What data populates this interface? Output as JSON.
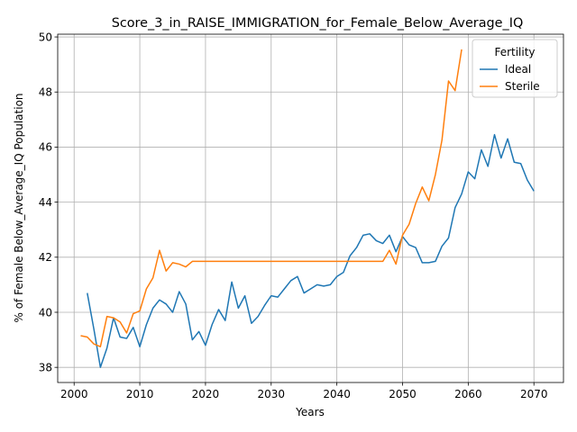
{
  "chart_data": {
    "type": "line",
    "title": "Score_3_in_RAISE_IMMIGRATION_for_Female_Below_Average_IQ",
    "xlabel": "Years",
    "ylabel": "% of Female Below_Average_IQ Population",
    "xlim": [
      1997.5,
      2074.5
    ],
    "ylim": [
      37.45,
      50.1
    ],
    "x_ticks": [
      2000,
      2010,
      2020,
      2030,
      2040,
      2050,
      2060,
      2070
    ],
    "y_ticks": [
      38,
      40,
      42,
      44,
      46,
      48,
      50
    ],
    "grid": true,
    "legend": {
      "title": "Fertility",
      "position": "top-right"
    },
    "series": [
      {
        "name": "Ideal",
        "color": "#1f77b4",
        "x": [
          2002,
          2003,
          2004,
          2005,
          2006,
          2007,
          2008,
          2009,
          2010,
          2011,
          2012,
          2013,
          2014,
          2015,
          2016,
          2017,
          2018,
          2019,
          2020,
          2021,
          2022,
          2023,
          2024,
          2025,
          2026,
          2027,
          2028,
          2029,
          2030,
          2031,
          2032,
          2033,
          2034,
          2035,
          2036,
          2037,
          2038,
          2039,
          2040,
          2041,
          2042,
          2043,
          2044,
          2045,
          2046,
          2047,
          2048,
          2049,
          2050,
          2051,
          2052,
          2053,
          2054,
          2055,
          2056,
          2057,
          2058,
          2059,
          2060,
          2061,
          2062,
          2063,
          2064,
          2065,
          2066,
          2067,
          2068,
          2069,
          2070
        ],
        "y": [
          40.7,
          39.4,
          38.0,
          38.7,
          39.8,
          39.1,
          39.05,
          39.45,
          38.75,
          39.55,
          40.15,
          40.45,
          40.3,
          40.0,
          40.75,
          40.3,
          39.0,
          39.3,
          38.8,
          39.55,
          40.1,
          39.7,
          41.1,
          40.15,
          40.6,
          39.6,
          39.85,
          40.25,
          40.6,
          40.55,
          40.85,
          41.15,
          41.3,
          40.7,
          40.85,
          41.0,
          40.95,
          41.0,
          41.3,
          41.45,
          42.05,
          42.35,
          42.8,
          42.85,
          42.6,
          42.5,
          42.8,
          42.2,
          42.75,
          42.45,
          42.35,
          41.8,
          41.8,
          41.85,
          42.4,
          42.7,
          43.8,
          44.3,
          45.1,
          44.85,
          45.9,
          45.3,
          46.45,
          45.6,
          46.3,
          45.45,
          45.4,
          44.8,
          44.4
        ]
      },
      {
        "name": "Sterile",
        "color": "#ff7f0e",
        "x": [
          2001,
          2002,
          2003,
          2004,
          2005,
          2006,
          2007,
          2008,
          2009,
          2010,
          2011,
          2012,
          2013,
          2014,
          2015,
          2016,
          2017,
          2018,
          2019,
          2020,
          2021,
          2022,
          2023,
          2024,
          2025,
          2026,
          2027,
          2028,
          2029,
          2030,
          2031,
          2032,
          2033,
          2034,
          2035,
          2036,
          2037,
          2038,
          2039,
          2040,
          2041,
          2042,
          2043,
          2044,
          2045,
          2046,
          2047,
          2048,
          2049,
          2050,
          2051,
          2052,
          2053,
          2054,
          2055,
          2056,
          2057,
          2058,
          2059
        ],
        "y": [
          39.15,
          39.1,
          38.85,
          38.75,
          39.85,
          39.8,
          39.65,
          39.25,
          39.95,
          40.05,
          40.85,
          41.25,
          42.25,
          41.5,
          41.8,
          41.75,
          41.65,
          41.85,
          41.85,
          41.85,
          41.85,
          41.85,
          41.85,
          41.85,
          41.85,
          41.85,
          41.85,
          41.85,
          41.85,
          41.85,
          41.85,
          41.85,
          41.85,
          41.85,
          41.85,
          41.85,
          41.85,
          41.85,
          41.85,
          41.85,
          41.85,
          41.85,
          41.85,
          41.85,
          41.85,
          41.85,
          41.85,
          42.25,
          41.75,
          42.8,
          43.2,
          43.95,
          44.55,
          44.05,
          45.0,
          46.25,
          48.4,
          48.05,
          49.55
        ]
      }
    ]
  }
}
